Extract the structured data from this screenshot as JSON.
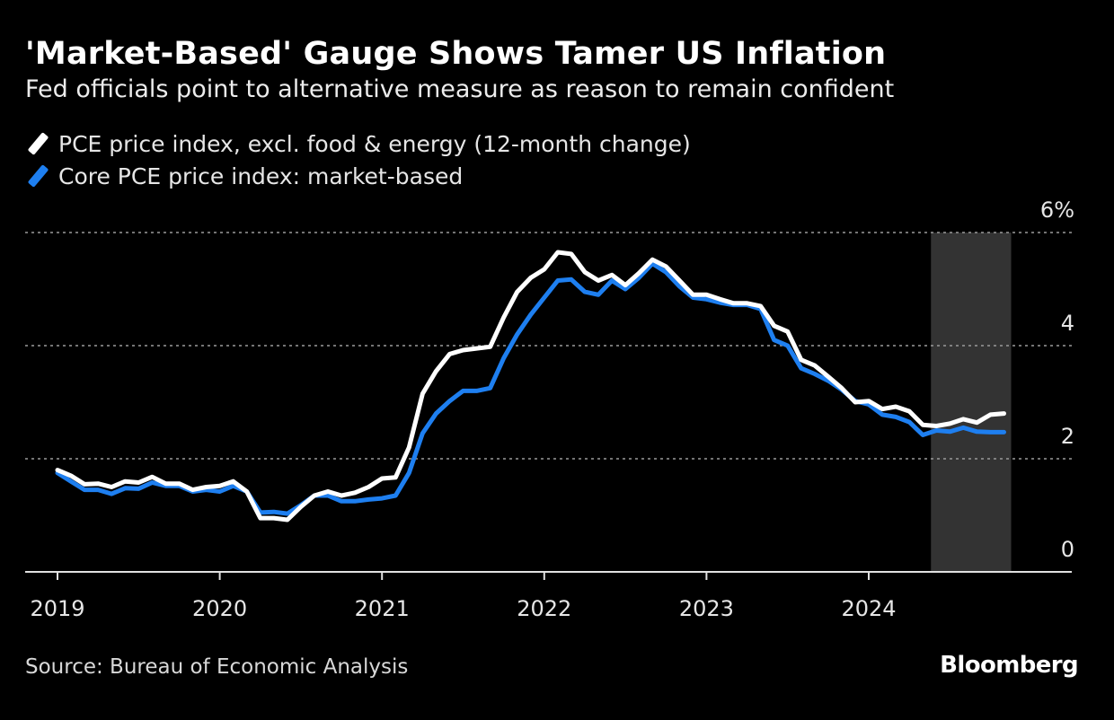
{
  "header": {
    "title": "'Market-Based' Gauge Shows Tamer US Inflation",
    "subtitle": "Fed officials point to alternative measure as reason to remain confident"
  },
  "footer": {
    "source": "Source: Bureau of Economic Analysis",
    "logo": "Bloomberg"
  },
  "colors": {
    "background": "#000000",
    "series_white": "#ffffff",
    "series_blue": "#1e7ff0",
    "shade": "#333333"
  },
  "chart_data": {
    "type": "line",
    "title": "'Market-Based' Gauge Shows Tamer US Inflation",
    "xlabel": "",
    "ylabel": "",
    "x_start": "2019-01",
    "x_frequency": "monthly",
    "x_tick_labels": [
      "2019",
      "2020",
      "2021",
      "2022",
      "2023",
      "2024"
    ],
    "y_tick_labels": [
      "0",
      "2",
      "4",
      "6%"
    ],
    "y_ticks": [
      0,
      2,
      4,
      6
    ],
    "ylim": [
      0,
      6
    ],
    "grid": true,
    "legend_position": "top-left",
    "shaded_region": {
      "start": "2024-06",
      "end": "2024-11"
    },
    "series": [
      {
        "name": "PCE price index, excl. food & energy (12-month change)",
        "color": "#ffffff",
        "values": [
          1.8,
          1.7,
          1.55,
          1.56,
          1.5,
          1.6,
          1.58,
          1.68,
          1.56,
          1.56,
          1.45,
          1.5,
          1.52,
          1.6,
          1.42,
          0.95,
          0.95,
          0.92,
          1.15,
          1.35,
          1.42,
          1.35,
          1.4,
          1.5,
          1.65,
          1.67,
          2.2,
          3.15,
          3.55,
          3.85,
          3.92,
          3.95,
          3.98,
          4.5,
          4.95,
          5.2,
          5.35,
          5.65,
          5.62,
          5.3,
          5.15,
          5.25,
          5.07,
          5.28,
          5.52,
          5.4,
          5.15,
          4.9,
          4.9,
          4.82,
          4.75,
          4.75,
          4.7,
          4.35,
          4.25,
          3.75,
          3.65,
          3.45,
          3.25,
          3.0,
          3.02,
          2.88,
          2.92,
          2.84,
          2.6,
          2.58,
          2.62,
          2.7,
          2.64,
          2.78,
          2.8
        ]
      },
      {
        "name": "Core PCE price index: market-based",
        "color": "#1e7ff0",
        "values": [
          1.75,
          1.6,
          1.45,
          1.45,
          1.38,
          1.48,
          1.47,
          1.58,
          1.52,
          1.52,
          1.42,
          1.45,
          1.42,
          1.52,
          1.42,
          1.05,
          1.06,
          1.03,
          1.18,
          1.35,
          1.35,
          1.25,
          1.25,
          1.28,
          1.3,
          1.35,
          1.75,
          2.45,
          2.8,
          3.02,
          3.2,
          3.2,
          3.25,
          3.78,
          4.2,
          4.55,
          4.85,
          5.15,
          5.17,
          4.95,
          4.9,
          5.15,
          5.0,
          5.2,
          5.45,
          5.3,
          5.05,
          4.85,
          4.82,
          4.76,
          4.72,
          4.72,
          4.65,
          4.1,
          4.0,
          3.6,
          3.5,
          3.38,
          3.22,
          3.02,
          2.96,
          2.78,
          2.74,
          2.65,
          2.42,
          2.5,
          2.48,
          2.55,
          2.48,
          2.47,
          2.47
        ]
      }
    ]
  }
}
